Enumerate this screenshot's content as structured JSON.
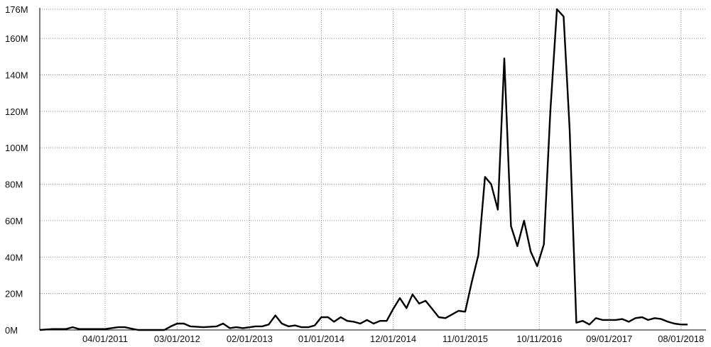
{
  "colors": {
    "line": "#000000",
    "grid": "#888888",
    "axis": "#000000",
    "background": "#ffffff"
  },
  "chart_data": {
    "type": "line",
    "title": "",
    "xlabel": "",
    "ylabel": "",
    "grid": true,
    "legend": "none",
    "x_tick_labels": [
      "04/01/2011",
      "03/01/2012",
      "02/01/2013",
      "01/01/2014",
      "12/01/2014",
      "11/01/2015",
      "10/11/2016",
      "09/01/2017",
      "08/01/2018"
    ],
    "y_tick_labels": [
      "0M",
      "20M",
      "40M",
      "60M",
      "80M",
      "100M",
      "120M",
      "140M",
      "160M",
      "176M"
    ],
    "y_ticks": [
      0,
      20,
      40,
      60,
      80,
      100,
      120,
      140,
      160,
      176
    ],
    "ylim": [
      0,
      176
    ],
    "xlim": [
      "2010-06-01",
      "2018-09-15"
    ],
    "y_unit": "M",
    "series": [
      {
        "x": [
          "2010-06-01",
          "2010-08-01",
          "2010-10-01",
          "2010-11-01",
          "2010-12-01",
          "2011-02-01",
          "2011-04-01",
          "2011-06-01",
          "2011-07-01",
          "2011-09-01",
          "2011-11-01",
          "2012-01-01",
          "2012-02-01",
          "2012-03-01",
          "2012-04-01",
          "2012-05-01",
          "2012-07-01",
          "2012-09-01",
          "2012-10-01",
          "2012-11-01",
          "2012-12-01",
          "2013-01-01",
          "2013-03-01",
          "2013-04-01",
          "2013-05-01",
          "2013-06-01",
          "2013-07-01",
          "2013-08-01",
          "2013-09-01",
          "2013-10-01",
          "2013-11-01",
          "2013-12-01",
          "2014-01-01",
          "2014-02-01",
          "2014-03-01",
          "2014-04-01",
          "2014-05-01",
          "2014-06-01",
          "2014-07-01",
          "2014-08-01",
          "2014-09-01",
          "2014-10-01",
          "2014-11-01",
          "2014-12-01",
          "2015-01-01",
          "2015-02-01",
          "2015-03-01",
          "2015-04-01",
          "2015-05-01",
          "2015-06-01",
          "2015-07-01",
          "2015-08-01",
          "2015-09-01",
          "2015-10-01",
          "2015-11-01",
          "2015-12-01",
          "2016-01-01",
          "2016-02-01",
          "2016-03-01",
          "2016-04-01",
          "2016-05-01",
          "2016-06-01",
          "2016-07-01",
          "2016-08-01",
          "2016-09-01",
          "2016-10-01",
          "2016-11-01",
          "2016-12-01",
          "2017-01-01",
          "2017-02-01",
          "2017-03-01",
          "2017-04-01",
          "2017-05-01",
          "2017-06-01",
          "2017-07-01",
          "2017-08-01",
          "2017-09-01",
          "2017-10-01",
          "2017-11-01",
          "2017-12-01",
          "2018-01-01",
          "2018-02-01",
          "2018-03-01",
          "2018-04-01",
          "2018-05-01",
          "2018-06-01",
          "2018-07-01",
          "2018-08-01",
          "2018-09-01"
        ],
        "values": [
          0,
          0.5,
          0.5,
          1.5,
          0.5,
          0.5,
          0.5,
          1.5,
          1.5,
          0,
          0,
          0,
          2,
          3.5,
          3.5,
          2,
          1.5,
          2,
          3.5,
          1,
          1.5,
          1,
          2,
          2,
          3,
          8,
          3.5,
          2,
          2.5,
          1.5,
          1.5,
          2.5,
          7,
          7,
          4.5,
          7,
          5,
          4.5,
          3.5,
          5.5,
          3.5,
          5,
          5,
          11.5,
          17.5,
          12,
          19.5,
          14.5,
          16,
          11.5,
          7,
          6.5,
          8.5,
          10.5,
          10,
          26,
          41,
          84,
          80,
          66,
          149,
          57,
          46,
          60,
          43,
          35,
          47,
          120,
          176,
          172,
          110,
          4,
          5,
          3,
          6.5,
          5.5,
          5.5,
          5.5,
          6,
          4.5,
          6.5,
          7,
          5.5,
          6.5,
          6,
          4.5,
          3.5,
          3,
          3
        ]
      }
    ]
  }
}
